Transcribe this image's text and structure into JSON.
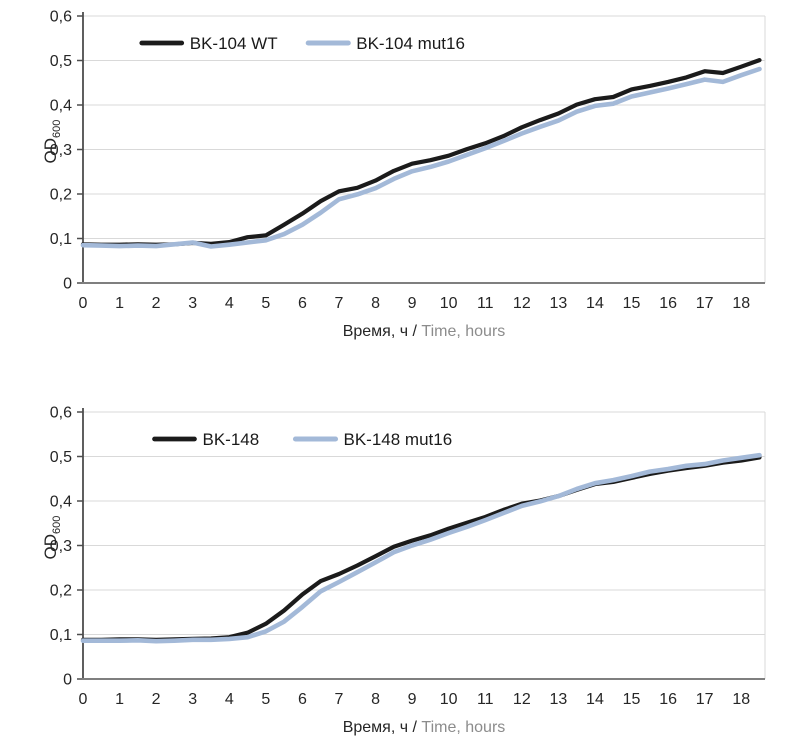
{
  "figure": {
    "background": "#ffffff",
    "palette": {
      "wild_type_line": "#1b1b1b",
      "mutant_line": "#a3b9d8",
      "gridline": "#d9d9d9",
      "x_axis": "#7f7f7f",
      "y_axis": "#4d4d4d",
      "tick_text": "#262626",
      "xlabel_secondary_text": "#8c8c8c"
    }
  },
  "chart_data": [
    {
      "type": "line",
      "title": "",
      "xlabel": "Время, ч / Time, hours",
      "xlabel_primary": "Время, ч /",
      "xlabel_secondary": "Time, hours",
      "ylabel": "OD600",
      "ylabel_base": "OD",
      "ylabel_subscript": "600",
      "xlim": [
        0,
        18.65
      ],
      "ylim": [
        0,
        0.6
      ],
      "grid": "horizontal",
      "legend_position": "top-inside",
      "xticks": [
        0,
        1,
        2,
        3,
        4,
        5,
        6,
        7,
        8,
        9,
        10,
        11,
        12,
        13,
        14,
        15,
        16,
        17,
        18
      ],
      "xtick_labels": [
        "0",
        "1",
        "2",
        "3",
        "4",
        "5",
        "6",
        "7",
        "8",
        "9",
        "10",
        "11",
        "12",
        "13",
        "14",
        "15",
        "16",
        "17",
        "18"
      ],
      "ytick_values": [
        0,
        0.1,
        0.2,
        0.3,
        0.4,
        0.5,
        0.6
      ],
      "ytick_labels": [
        "0",
        "0,1",
        "0,2",
        "0,3",
        "0,4",
        "0,5",
        "0,6"
      ],
      "x": [
        0,
        0.5,
        1,
        1.5,
        2,
        2.5,
        3,
        3.5,
        4,
        4.5,
        5,
        5.5,
        6,
        6.5,
        7,
        7.5,
        8,
        8.5,
        9,
        9.5,
        10,
        10.5,
        11,
        11.5,
        12,
        12.5,
        13,
        13.5,
        14,
        14.5,
        15,
        15.5,
        16,
        16.5,
        17,
        17.5,
        18,
        18.5
      ],
      "series": [
        {
          "name": "BK-104 WT",
          "color": "#1b1b1b",
          "stroke_width": 4.2,
          "values": [
            0.087,
            0.086,
            0.086,
            0.087,
            0.086,
            0.087,
            0.09,
            0.088,
            0.092,
            0.103,
            0.107,
            0.131,
            0.156,
            0.184,
            0.206,
            0.214,
            0.23,
            0.252,
            0.268,
            0.276,
            0.286,
            0.301,
            0.314,
            0.33,
            0.35,
            0.366,
            0.381,
            0.401,
            0.413,
            0.418,
            0.435,
            0.443,
            0.452,
            0.462,
            0.476,
            0.472,
            0.486,
            0.501
          ]
        },
        {
          "name": "BK-104 mut16",
          "color": "#a3b9d8",
          "stroke_width": 4.6,
          "values": [
            0.085,
            0.084,
            0.083,
            0.084,
            0.083,
            0.087,
            0.091,
            0.082,
            0.086,
            0.091,
            0.096,
            0.11,
            0.131,
            0.158,
            0.188,
            0.199,
            0.213,
            0.234,
            0.251,
            0.261,
            0.273,
            0.288,
            0.303,
            0.319,
            0.336,
            0.351,
            0.365,
            0.385,
            0.398,
            0.403,
            0.419,
            0.428,
            0.437,
            0.447,
            0.457,
            0.452,
            0.467,
            0.481
          ]
        }
      ]
    },
    {
      "type": "line",
      "title": "",
      "xlabel": "Время, ч / Time, hours",
      "xlabel_primary": "Время, ч /",
      "xlabel_secondary": "Time, hours",
      "ylabel": "OD600",
      "ylabel_base": "OD",
      "ylabel_subscript": "600",
      "xlim": [
        0,
        18.65
      ],
      "ylim": [
        0,
        0.6
      ],
      "grid": "horizontal",
      "legend_position": "top-inside",
      "xticks": [
        0,
        1,
        2,
        3,
        4,
        5,
        6,
        7,
        8,
        9,
        10,
        11,
        12,
        13,
        14,
        15,
        16,
        17,
        18
      ],
      "xtick_labels": [
        "0",
        "1",
        "2",
        "3",
        "4",
        "5",
        "6",
        "7",
        "8",
        "9",
        "10",
        "11",
        "12",
        "13",
        "14",
        "15",
        "16",
        "17",
        "18"
      ],
      "ytick_values": [
        0,
        0.1,
        0.2,
        0.3,
        0.4,
        0.5,
        0.6
      ],
      "ytick_labels": [
        "0",
        "0,1",
        "0,2",
        "0,3",
        "0,4",
        "0,5",
        "0,6"
      ],
      "x": [
        0,
        0.5,
        1,
        1.5,
        2,
        2.5,
        3,
        3.5,
        4,
        4.5,
        5,
        5.5,
        6,
        6.5,
        7,
        7.5,
        8,
        8.5,
        9,
        9.5,
        10,
        10.5,
        11,
        11.5,
        12,
        12.5,
        13,
        13.5,
        14,
        14.5,
        15,
        15.5,
        16,
        16.5,
        17,
        17.5,
        18,
        18.5
      ],
      "series": [
        {
          "name": "BK-148",
          "color": "#1b1b1b",
          "stroke_width": 4.2,
          "values": [
            0.088,
            0.088,
            0.089,
            0.089,
            0.088,
            0.089,
            0.09,
            0.091,
            0.094,
            0.104,
            0.124,
            0.154,
            0.19,
            0.22,
            0.236,
            0.255,
            0.276,
            0.297,
            0.311,
            0.323,
            0.338,
            0.351,
            0.364,
            0.38,
            0.394,
            0.401,
            0.411,
            0.425,
            0.438,
            0.443,
            0.452,
            0.461,
            0.468,
            0.474,
            0.479,
            0.486,
            0.491,
            0.498
          ]
        },
        {
          "name": "BK-148 mut16",
          "color": "#a3b9d8",
          "stroke_width": 4.6,
          "values": [
            0.086,
            0.086,
            0.086,
            0.087,
            0.085,
            0.086,
            0.088,
            0.088,
            0.09,
            0.094,
            0.107,
            0.129,
            0.162,
            0.197,
            0.218,
            0.24,
            0.262,
            0.285,
            0.3,
            0.313,
            0.328,
            0.342,
            0.357,
            0.373,
            0.389,
            0.399,
            0.411,
            0.427,
            0.44,
            0.447,
            0.456,
            0.466,
            0.472,
            0.479,
            0.483,
            0.491,
            0.497,
            0.503
          ]
        }
      ]
    }
  ]
}
